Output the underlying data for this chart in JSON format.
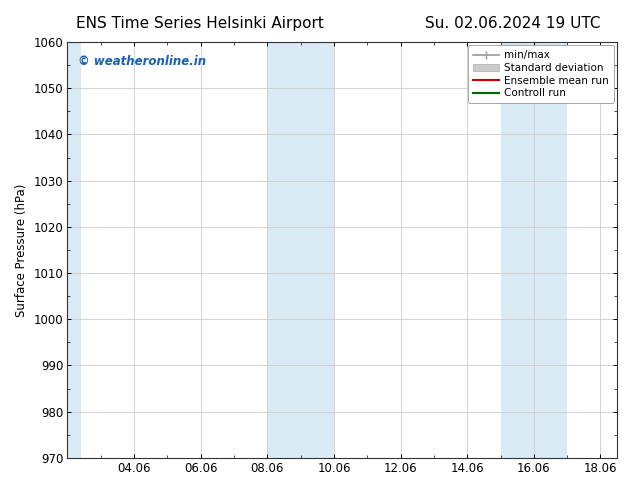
{
  "title_left": "ENS Time Series Helsinki Airport",
  "title_right": "Su. 02.06.2024 19 UTC",
  "ylabel": "Surface Pressure (hPa)",
  "ylim": [
    970,
    1060
  ],
  "yticks": [
    970,
    980,
    990,
    1000,
    1010,
    1020,
    1030,
    1040,
    1050,
    1060
  ],
  "xlim": [
    2.0,
    18.5
  ],
  "xtick_positions": [
    4,
    6,
    8,
    10,
    12,
    14,
    16,
    18
  ],
  "xtick_labels": [
    "04.06",
    "06.06",
    "08.06",
    "10.06",
    "12.06",
    "14.06",
    "16.06",
    "18.06"
  ],
  "shaded_bands": [
    {
      "x_start": 2.0,
      "x_end": 2.4
    },
    {
      "x_start": 8.0,
      "x_end": 10.0
    },
    {
      "x_start": 15.0,
      "x_end": 17.0
    }
  ],
  "shaded_color": "#daeaf5",
  "watermark_text": "© weatheronline.in",
  "watermark_color": "#1a5fb4",
  "background_color": "#ffffff",
  "plot_bg_color": "#ffffff",
  "grid_color": "#cccccc",
  "legend_items": [
    {
      "label": "min/max",
      "color": "#999999",
      "lw": 1.2
    },
    {
      "label": "Standard deviation",
      "color": "#cccccc",
      "lw": 6
    },
    {
      "label": "Ensemble mean run",
      "color": "#cc0000",
      "lw": 1.5
    },
    {
      "label": "Controll run",
      "color": "#006600",
      "lw": 1.5
    }
  ],
  "spine_color": "#333333",
  "tick_label_fontsize": 8.5,
  "title_fontsize": 11,
  "legend_fontsize": 7.5,
  "ylabel_fontsize": 8.5
}
